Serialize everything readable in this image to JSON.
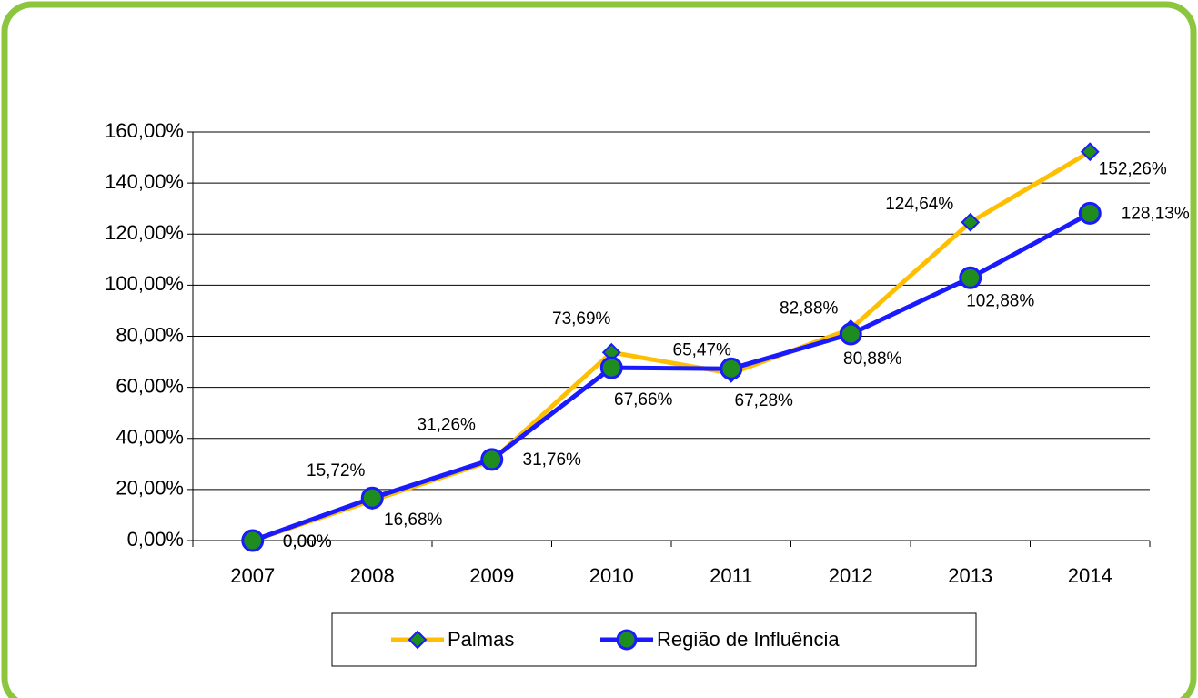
{
  "chart_data": {
    "type": "line",
    "categories": [
      "2007",
      "2008",
      "2009",
      "2010",
      "2011",
      "2012",
      "2013",
      "2014"
    ],
    "series": [
      {
        "name": "Palmas",
        "color": "#ffbf00",
        "marker_color": "#1e8c1e",
        "marker_edge": "#1a1aff",
        "values": [
          0,
          15.72,
          31.26,
          73.69,
          65.47,
          82.88,
          124.64,
          152.26
        ],
        "value_labels": [
          "0,00%",
          "15,72%",
          "31,26%",
          "73,69%",
          "65,47%",
          "82,88%",
          "124,64%",
          "152,26%"
        ]
      },
      {
        "name": "Região de Influência",
        "color": "#1a1aff",
        "marker_color": "#1e8c1e",
        "marker_edge": "#1a1aff",
        "values": [
          0,
          16.68,
          31.76,
          67.66,
          67.28,
          80.88,
          102.88,
          128.13
        ],
        "value_labels": [
          "0,00%",
          "16,68%",
          "31,76%",
          "67,66%",
          "67,28%",
          "80,88%",
          "102,88%",
          "128,13%"
        ]
      }
    ],
    "ylim": [
      0,
      160
    ],
    "yticks": [
      {
        "value": 0,
        "label": "0,00%"
      },
      {
        "value": 20,
        "label": "20,00%"
      },
      {
        "value": 40,
        "label": "40,00%"
      },
      {
        "value": 60,
        "label": "60,00%"
      },
      {
        "value": 80,
        "label": "80,00%"
      },
      {
        "value": 100,
        "label": "100,00%"
      },
      {
        "value": 120,
        "label": "120,00%"
      },
      {
        "value": 140,
        "label": "140,00%"
      },
      {
        "value": 160,
        "label": "160,00%"
      }
    ],
    "grid": true,
    "legend": "bottom"
  }
}
